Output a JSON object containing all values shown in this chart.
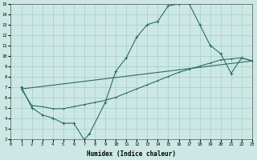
{
  "xlabel": "Humidex (Indice chaleur)",
  "xlim": [
    0,
    23
  ],
  "ylim": [
    2,
    15
  ],
  "xticks": [
    0,
    1,
    2,
    3,
    4,
    5,
    6,
    7,
    8,
    9,
    10,
    11,
    12,
    13,
    14,
    15,
    16,
    17,
    18,
    19,
    20,
    21,
    22,
    23
  ],
  "yticks": [
    2,
    3,
    4,
    5,
    6,
    7,
    8,
    9,
    10,
    11,
    12,
    13,
    14,
    15
  ],
  "bg_color": "#cce8e4",
  "grid_color": "#a8ccc8",
  "line_color": "#2a6b6b",
  "line1_x": [
    1,
    2,
    3,
    4,
    5,
    6,
    7,
    7.5,
    9,
    10,
    11,
    12,
    13,
    14,
    15,
    16,
    17,
    18,
    19,
    20,
    21,
    22,
    23
  ],
  "line1_y": [
    7.0,
    5.0,
    4.3,
    4.0,
    3.5,
    3.5,
    1.9,
    2.5,
    5.5,
    8.5,
    9.8,
    11.8,
    13.0,
    13.3,
    14.8,
    15.0,
    15.0,
    13.0,
    11.0,
    10.2,
    8.3,
    9.8,
    9.5
  ],
  "line2_x": [
    1,
    23
  ],
  "line2_y": [
    6.8,
    9.5
  ],
  "line3_x": [
    1,
    2,
    3,
    4,
    5,
    6,
    7,
    8,
    9,
    10,
    11,
    12,
    13,
    14,
    15,
    16,
    17,
    18,
    19,
    20,
    21,
    22,
    23
  ],
  "line3_y": [
    6.8,
    5.2,
    5.1,
    4.9,
    4.9,
    5.1,
    5.3,
    5.5,
    5.7,
    6.0,
    6.4,
    6.8,
    7.2,
    7.6,
    8.0,
    8.4,
    8.7,
    9.0,
    9.3,
    9.6,
    9.7,
    9.8,
    9.5
  ]
}
